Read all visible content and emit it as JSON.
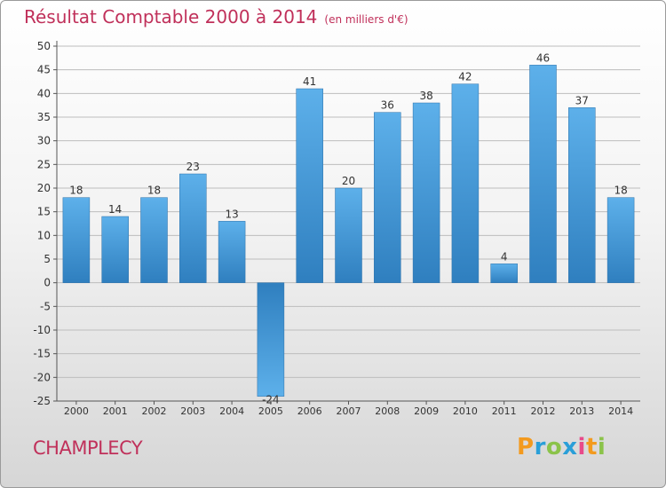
{
  "title": "Résultat Comptable 2000 à 2014",
  "unit_label": "(en milliers d'€)",
  "commune": "CHAMPLECY",
  "brand": {
    "letters": [
      "P",
      "r",
      "o",
      "x",
      "i",
      "t",
      "i"
    ],
    "colors": [
      "#f39a1e",
      "#2a9fd8",
      "#8bc34a",
      "#2a9fd8",
      "#e84a8a",
      "#f39a1e",
      "#8bc34a"
    ]
  },
  "colors": {
    "title": "#c0305a",
    "bar_dark": "#2f7fbf",
    "bar_light": "#5db0ea",
    "grid": "#bdbdbd"
  },
  "chart_data": {
    "type": "bar",
    "title": "Résultat Comptable 2000 à 2014",
    "categories": [
      "2000",
      "2001",
      "2002",
      "2003",
      "2004",
      "2005",
      "2006",
      "2007",
      "2008",
      "2009",
      "2010",
      "2011",
      "2012",
      "2013",
      "2014"
    ],
    "values": [
      18,
      14,
      18,
      23,
      13,
      -24,
      41,
      20,
      36,
      38,
      42,
      4,
      46,
      37,
      18
    ],
    "xlabel": "",
    "ylabel": "",
    "ylim": [
      -25,
      50
    ],
    "yticks": [
      50,
      45,
      40,
      35,
      30,
      25,
      20,
      15,
      10,
      5,
      0,
      -5,
      -10,
      -15,
      -20,
      -25
    ],
    "grid": true
  }
}
